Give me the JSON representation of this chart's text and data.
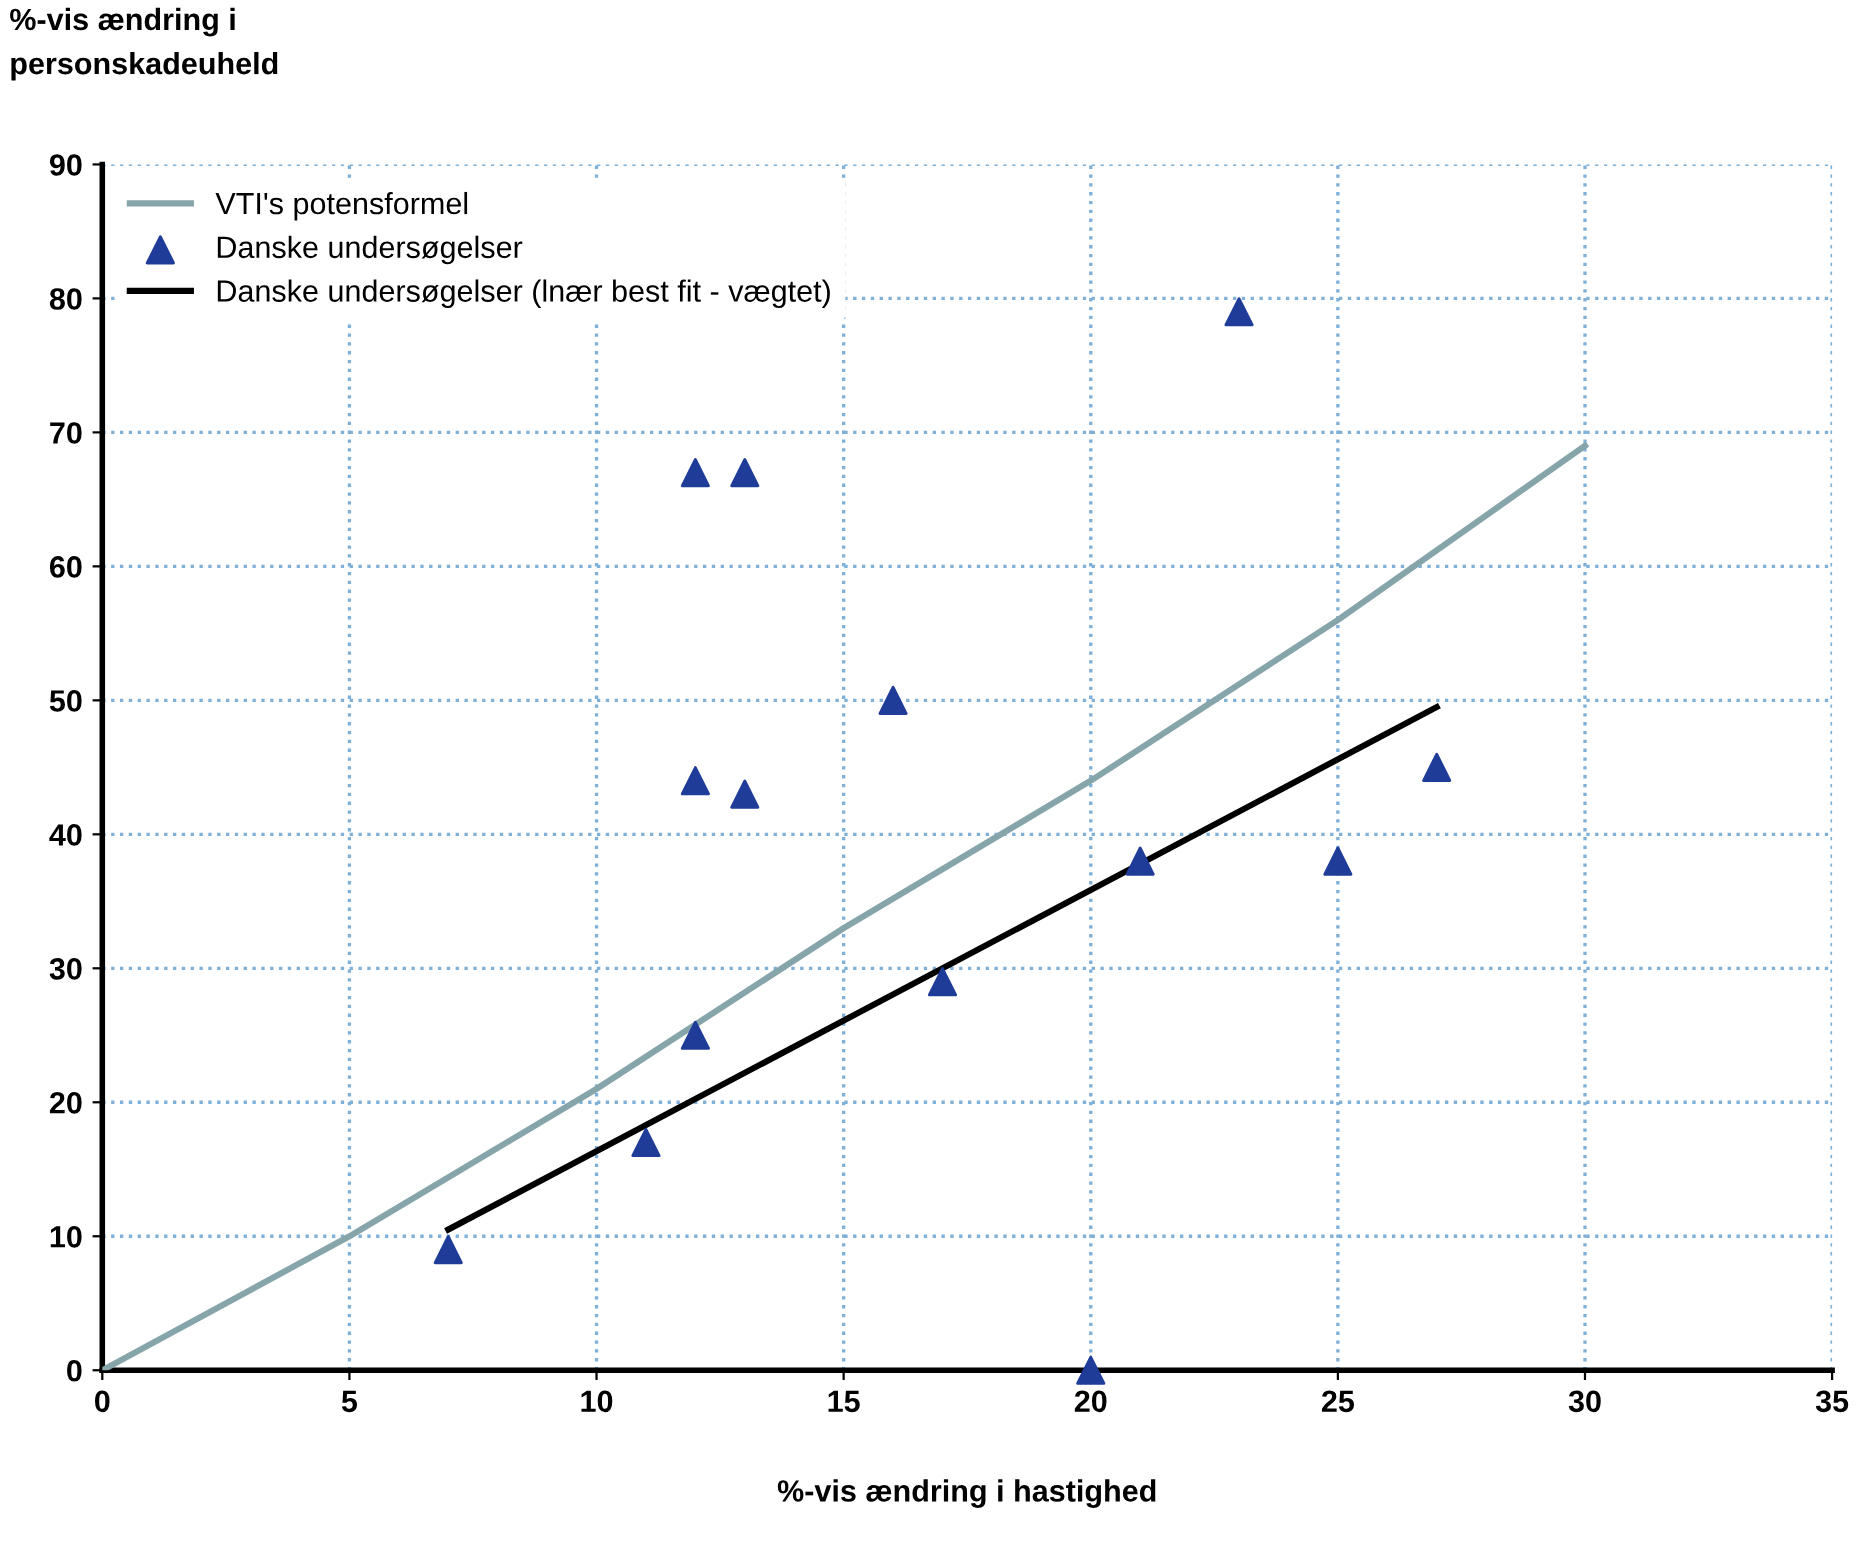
{
  "chart_data": {
    "type": "scatter",
    "xlabel": "%-vis ændring i hastighed",
    "ylabel": "%-vis ændring i\npersonskadeuheld",
    "xlim": [
      0,
      35
    ],
    "ylim": [
      0,
      90
    ],
    "xticks": [
      0,
      5,
      10,
      15,
      20,
      25,
      30,
      35
    ],
    "yticks": [
      0,
      10,
      20,
      30,
      40,
      50,
      60,
      70,
      80,
      90
    ],
    "grid": true,
    "legend": "top left",
    "series": [
      {
        "name": "VTI's potensformel",
        "type": "line",
        "color": "#86a5aa",
        "marker": "none",
        "line_style": "solid",
        "x": [
          0,
          5,
          10,
          15,
          20,
          25,
          30
        ],
        "values": [
          0,
          10,
          21,
          33,
          44,
          56,
          69
        ]
      },
      {
        "name": "Danske undersøgelser",
        "color": "#1f3c99",
        "marker": "triangle",
        "x": [
          7,
          11,
          12,
          12,
          12,
          13,
          13,
          16,
          17,
          20,
          21,
          23,
          25,
          27
        ],
        "values": [
          9,
          17,
          25,
          44,
          67,
          43,
          67,
          50,
          29,
          0,
          38,
          79,
          38,
          45
        ]
      },
      {
        "name": "Danske undersøgelser (lnær best fit - vægtet)",
        "type": "line",
        "color": "#000000",
        "marker": "none",
        "line_style": "solid",
        "x": [
          7,
          27
        ],
        "values": [
          10.5,
          49.5
        ]
      }
    ]
  }
}
